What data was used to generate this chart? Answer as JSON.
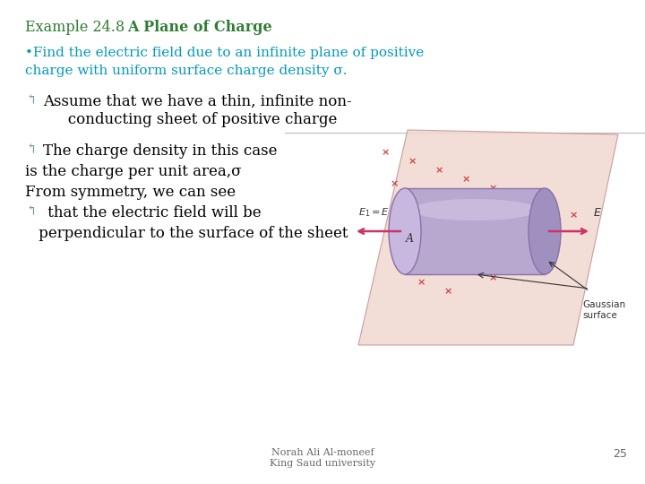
{
  "background_color": "#ffffff",
  "title_normal": "Example 24.8 ",
  "title_bold": "A Plane of Charge",
  "title_color": "#2e7d32",
  "title_fontsize": 11.5,
  "bullet_color": "#0099bb",
  "bullet_text_line1": "•Find the electric field due to an infinite plane of positive",
  "bullet_text_line2": "charge with uniform surface charge density σ.",
  "bullet_fontsize": 11.0,
  "body_color": "#000000",
  "body_fontsize": 12.0,
  "curl_color": "#7799aa",
  "line1": "Assume that we have a thin, infinite non-",
  "line2": "   conducting sheet of positive charge",
  "line3": "The charge density in this case",
  "line4": "is the charge per unit area,σ",
  "line5": "From symmetry, we can see",
  "line6": " that the electric field will be",
  "line7": " perpendicular to the surface of the sheet",
  "footer_text1": "Norah Ali Al-moneef",
  "footer_text2": "King Saud university",
  "footer_color": "#666666",
  "footer_fontsize": 8,
  "page_number": "25",
  "cyl_color": "#b8a8d0",
  "cyl_edge": "#8870a8",
  "plane_color": "#f0d8d0",
  "plane_edge": "#c09090",
  "x_color": "#cc4444",
  "arrow_color": "#cc3366"
}
